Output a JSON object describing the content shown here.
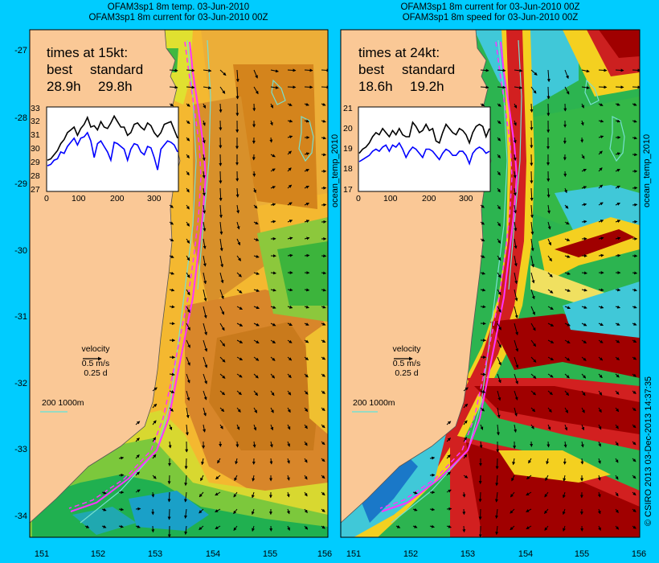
{
  "left_panel": {
    "title_line1": "OFAM3sp1 8m temp. 03-Jun-2010",
    "title_line2": "OFAM3sp1 8m current for 03-Jun-2010 00Z",
    "times_heading": "times at 15kt:",
    "best_label": "best",
    "standard_label": "standard",
    "best_time": "28.9h",
    "standard_time": "29.8h",
    "inset_y_ticks": [
      "33",
      "32",
      "31",
      "30",
      "29",
      "28",
      "27"
    ],
    "inset_x_ticks": [
      "0",
      "100",
      "200",
      "300"
    ],
    "velocity_label": "velocity",
    "velocity_speed": "0.5 m/s",
    "velocity_time": "0.25 d",
    "scale_label": "200  1000m"
  },
  "right_panel": {
    "title_line1": "OFAM3sp1 8m current for 03-Jun-2010 00Z",
    "title_line2": "OFAM3sp1 8m speed for 03-Jun-2010 00Z",
    "times_heading": "times at 24kt:",
    "best_label": "best",
    "standard_label": "standard",
    "best_time": "18.6h",
    "standard_time": "19.2h",
    "inset_y_ticks": [
      "21",
      "20",
      "19",
      "18",
      "17"
    ],
    "inset_x_ticks": [
      "0",
      "100",
      "200",
      "300"
    ],
    "velocity_label": "velocity",
    "velocity_speed": "0.5 m/s",
    "velocity_time": "0.25 d",
    "scale_label": "200  1000m"
  },
  "axes": {
    "lat_ticks": [
      "-27",
      "-28",
      "-29",
      "-30",
      "-31",
      "-32",
      "-33",
      "-34"
    ],
    "lon_ticks": [
      "151",
      "152",
      "153",
      "154",
      "155",
      "156"
    ]
  },
  "vertical_labels": {
    "left_colorbar": "ocean_temp_2010",
    "right_colorbar": "ocean_temp_2010",
    "credit": "© CSIRO 2013   03-Dec-2013 14:37:35"
  },
  "colors": {
    "background": "#00ccff",
    "land": "#fac896",
    "route": "#ff33ff",
    "best_series": "#000000",
    "standard_series": "#0000ff",
    "contour": "#77e0d0"
  },
  "inset_series": {
    "left_best": [
      29.2,
      29.3,
      29.6,
      29.9,
      30.4,
      30.7,
      31.2,
      31.4,
      31.6,
      31.0,
      31.5,
      31.8,
      32.3,
      31.6,
      31.7,
      31.4,
      32.0,
      31.6,
      31.5,
      31.9,
      32.4,
      32.0,
      31.6,
      31.6,
      31.0,
      31.2,
      31.8,
      31.9,
      31.6,
      31.4,
      31.9,
      31.7,
      31.2,
      30.9,
      31.2,
      31.8,
      31.9,
      32.0,
      31.4,
      30.8
    ],
    "left_standard": [
      28.8,
      28.9,
      29.2,
      29.3,
      29.8,
      29.7,
      30.2,
      30.5,
      30.8,
      30.3,
      30.8,
      30.9,
      31.2,
      30.6,
      29.4,
      30.4,
      30.6,
      30.2,
      29.8,
      29.2,
      30.5,
      30.4,
      30.2,
      30.0,
      29.2,
      30.0,
      30.4,
      30.3,
      29.8,
      29.6,
      30.2,
      30.1,
      29.4,
      28.5,
      30.0,
      30.3,
      30.6,
      30.5,
      30.3,
      29.8
    ],
    "right_best": [
      18.8,
      19.0,
      19.1,
      19.3,
      19.6,
      19.8,
      19.7,
      20.0,
      19.8,
      19.6,
      19.9,
      19.7,
      20.0,
      19.7,
      19.6,
      19.6,
      20.3,
      20.1,
      19.8,
      19.9,
      20.2,
      19.9,
      20.0,
      19.4,
      19.3,
      19.8,
      20.2,
      20.0,
      19.8,
      19.7,
      20.0,
      19.9,
      19.7,
      19.3,
      19.8,
      20.1,
      20.2,
      20.1,
      19.6,
      20.0
    ],
    "right_standard": [
      18.4,
      18.5,
      18.6,
      18.7,
      18.9,
      19.0,
      18.9,
      19.1,
      19.2,
      18.9,
      19.2,
      19.1,
      19.3,
      19.0,
      18.6,
      18.9,
      19.1,
      19.0,
      18.8,
      18.6,
      19.0,
      19.0,
      18.9,
      18.7,
      18.5,
      18.8,
      19.0,
      18.9,
      18.7,
      18.7,
      18.9,
      18.9,
      18.7,
      18.3,
      18.8,
      19.0,
      19.1,
      19.0,
      18.8,
      18.9
    ]
  }
}
